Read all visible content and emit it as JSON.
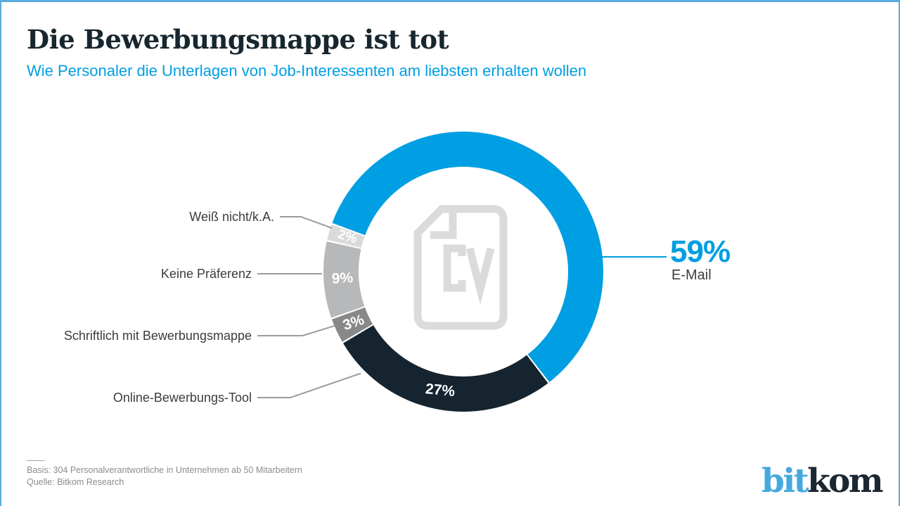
{
  "page": {
    "frame_color": "#58ABDC",
    "footer": {
      "basis": "Basis: 304 Personalverantwortliche in Unternehmen ab 50 Mitarbeitern",
      "source": "Quelle: Bitkom Research"
    },
    "logo": {
      "part1": "bit",
      "part2": "kom",
      "blue": "#45A9DE",
      "dark": "#1B2732"
    }
  },
  "chart_data": {
    "type": "pie",
    "subtype": "donut",
    "title": "Die Bewerbungsmappe ist tot",
    "subtitle": "Wie Personaler die Unterlagen von Job-Interessenten am liebsten erhalten wollen",
    "unit": "%",
    "start_angle_deg": 290,
    "direction": "clockwise",
    "legend_position": "callout-labels",
    "center_icon": "cv-document-icon",
    "slices": [
      {
        "label": "E-Mail",
        "value": 59,
        "color": "#009EE2",
        "percent_label": "external"
      },
      {
        "label": "Online-Bewerbungs-Tool",
        "value": 27,
        "color": "#15242F",
        "percent_label": "internal"
      },
      {
        "label": "Schriftlich mit Bewerbungsmappe",
        "value": 3,
        "color": "#87888A",
        "percent_label": "internal"
      },
      {
        "label": "Keine Präferenz",
        "value": 9,
        "color": "#B7B8BA",
        "percent_label": "internal"
      },
      {
        "label": "Weiß nicht/k.A.",
        "value": 2,
        "color": "#D9DADB",
        "percent_label": "internal"
      }
    ]
  }
}
